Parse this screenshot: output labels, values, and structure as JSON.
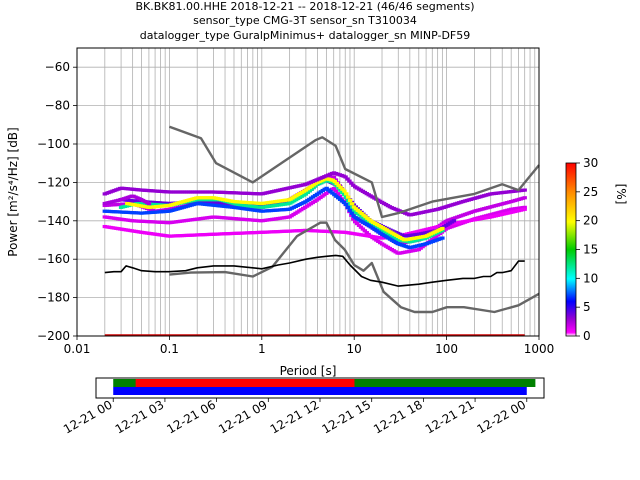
{
  "title_lines": [
    "BK.BK81.00.HHE   2018-12-21 -- 2018-12-21  (46/46 segments)",
    "sensor_type CMG-3T sensor_sn T310034",
    "datalogger_type GuralpMinimus+ datalogger_sn MINP-DF59"
  ],
  "colors": {
    "noise_models": "#666666",
    "mode_line": "#000000",
    "timeline_green": "#008000",
    "timeline_red": "#ff0000",
    "timeline_blue": "#0000ff",
    "grid": "#b0b0b0"
  },
  "chart_data": [
    {
      "type": "heatmap",
      "xlabel": "Period [s]",
      "ylabel": "Power [m²/s⁴/Hz] [dB]",
      "xscale": "log",
      "xlim": [
        0.01,
        1000
      ],
      "ylim": [
        -200,
        -50
      ],
      "x_ticks": [
        {
          "value": 0.01,
          "label": "0.01"
        },
        {
          "value": 0.1,
          "label": "0.1"
        },
        {
          "value": 1,
          "label": "1"
        },
        {
          "value": 10,
          "label": "10"
        },
        {
          "value": 100,
          "label": "100"
        },
        {
          "value": 1000,
          "label": "1000"
        }
      ],
      "y_ticks": [
        {
          "value": -60,
          "label": "−60"
        },
        {
          "value": -80,
          "label": "−80"
        },
        {
          "value": -100,
          "label": "−100"
        },
        {
          "value": -120,
          "label": "−120"
        },
        {
          "value": -140,
          "label": "−140"
        },
        {
          "value": -160,
          "label": "−160"
        },
        {
          "value": -180,
          "label": "−180"
        },
        {
          "value": -200,
          "label": "−200"
        }
      ],
      "grid": "on",
      "colorbar": {
        "label": "[%]",
        "range": [
          0,
          30
        ],
        "ticks": [
          "0",
          "5",
          "10",
          "15",
          "20",
          "25",
          "30"
        ]
      },
      "series": [
        {
          "role": "noise_model_high",
          "points": [
            [
              0.1,
              -91
            ],
            [
              0.22,
              -97
            ],
            [
              0.32,
              -110
            ],
            [
              0.8,
              -120
            ],
            [
              3.8,
              -98
            ],
            [
              4.5,
              -96.5
            ],
            [
              6.3,
              -101
            ],
            [
              8,
              -113
            ],
            [
              15.5,
              -120
            ],
            [
              20,
              -138
            ],
            [
              30,
              -136
            ],
            [
              70,
              -130
            ],
            [
              200,
              -126
            ],
            [
              400,
              -121
            ],
            [
              600,
              -124
            ],
            [
              1000,
              -111
            ]
          ]
        },
        {
          "role": "noise_model_low",
          "points": [
            [
              0.1,
              -168
            ],
            [
              0.17,
              -167
            ],
            [
              0.4,
              -166.7
            ],
            [
              0.8,
              -169
            ],
            [
              1.3,
              -164
            ],
            [
              2.4,
              -148
            ],
            [
              4.3,
              -141
            ],
            [
              5,
              -141
            ],
            [
              6.2,
              -150
            ],
            [
              7.9,
              -155
            ],
            [
              10,
              -163
            ],
            [
              12.6,
              -166
            ],
            [
              15.5,
              -162
            ],
            [
              20.8,
              -177
            ],
            [
              32,
              -185
            ],
            [
              45,
              -187.5
            ],
            [
              70,
              -187.5
            ],
            [
              101,
              -185
            ],
            [
              154,
              -185
            ],
            [
              329,
              -187.5
            ],
            [
              600,
              -184
            ],
            [
              1000,
              -178
            ]
          ]
        },
        {
          "role": "mode",
          "points": [
            [
              0.02,
              -167
            ],
            [
              0.025,
              -166.5
            ],
            [
              0.03,
              -166.5
            ],
            [
              0.034,
              -163.5
            ],
            [
              0.04,
              -164.5
            ],
            [
              0.05,
              -166
            ],
            [
              0.07,
              -166.5
            ],
            [
              0.1,
              -166.5
            ],
            [
              0.15,
              -166
            ],
            [
              0.2,
              -164.5
            ],
            [
              0.3,
              -163.5
            ],
            [
              0.5,
              -163.5
            ],
            [
              1,
              -165
            ],
            [
              1.5,
              -163
            ],
            [
              2,
              -162
            ],
            [
              3,
              -160
            ],
            [
              4,
              -159
            ],
            [
              5,
              -158.5
            ],
            [
              6.3,
              -158
            ],
            [
              7.5,
              -158.5
            ],
            [
              9,
              -163
            ],
            [
              12,
              -169
            ],
            [
              15,
              -171
            ],
            [
              20,
              -172
            ],
            [
              30,
              -174
            ],
            [
              50,
              -173
            ],
            [
              70,
              -172
            ],
            [
              100,
              -171
            ],
            [
              150,
              -170
            ],
            [
              200,
              -170
            ],
            [
              250,
              -169
            ],
            [
              300,
              -169
            ],
            [
              350,
              -167
            ],
            [
              400,
              -167
            ],
            [
              500,
              -166
            ],
            [
              600,
              -161
            ],
            [
              700,
              -161
            ]
          ]
        }
      ],
      "psd_histogram": [
        {
          "pct": 2,
          "points": [
            [
              0.02,
              -132
            ],
            [
              0.04,
              -131
            ],
            [
              0.07,
              -135
            ],
            [
              0.1,
              -134
            ],
            [
              0.2,
              -131
            ],
            [
              0.5,
              -132
            ],
            [
              0.8,
              -134
            ],
            [
              1.3,
              -132
            ],
            [
              2,
              -129
            ],
            [
              3,
              -124
            ],
            [
              5,
              -118
            ],
            [
              6,
              -117
            ],
            [
              8,
              -126
            ],
            [
              10,
              -138
            ],
            [
              15,
              -143
            ],
            [
              20,
              -147
            ],
            [
              30,
              -152
            ],
            [
              50,
              -150
            ],
            [
              100,
              -140
            ],
            [
              200,
              -135
            ],
            [
              500,
              -130
            ],
            [
              700,
              -128
            ]
          ]
        },
        {
          "pct": 1.5,
          "points": [
            [
              0.02,
              -138
            ],
            [
              0.04,
              -140
            ],
            [
              0.1,
              -141
            ],
            [
              0.3,
              -138
            ],
            [
              1,
              -140
            ],
            [
              2,
              -138
            ],
            [
              4,
              -129
            ],
            [
              6,
              -123
            ],
            [
              8,
              -131
            ],
            [
              10,
              -140
            ],
            [
              15,
              -148
            ],
            [
              20,
              -152
            ],
            [
              30,
              -157
            ],
            [
              50,
              -155
            ],
            [
              100,
              -144
            ],
            [
              200,
              -139
            ],
            [
              500,
              -134
            ],
            [
              700,
              -133
            ]
          ]
        },
        {
          "pct": 1,
          "points": [
            [
              0.02,
              -143
            ],
            [
              0.05,
              -146
            ],
            [
              0.1,
              -148
            ],
            [
              0.3,
              -147
            ],
            [
              1,
              -146
            ],
            [
              3,
              -145
            ],
            [
              8,
              -146
            ],
            [
              20,
              -149
            ],
            [
              30,
              -148
            ],
            [
              100,
              -142
            ],
            [
              300,
              -138
            ],
            [
              700,
              -134
            ]
          ]
        },
        {
          "pct": 4,
          "points": [
            [
              0.03,
              -129
            ],
            [
              0.05,
              -130
            ],
            [
              0.1,
              -131
            ],
            [
              0.2,
              -130
            ],
            [
              0.5,
              -131
            ],
            [
              1,
              -132
            ],
            [
              2,
              -130
            ],
            [
              3,
              -126
            ],
            [
              4,
              -121
            ],
            [
              5,
              -119
            ],
            [
              7,
              -122
            ],
            [
              10,
              -132
            ],
            [
              15,
              -140
            ],
            [
              25,
              -145
            ],
            [
              35,
              -148
            ],
            [
              50,
              -147
            ],
            [
              80,
              -145
            ],
            [
              120,
              -140
            ]
          ]
        },
        {
          "pct": 12,
          "points": [
            [
              0.03,
              -133
            ],
            [
              0.045,
              -131
            ],
            [
              0.1,
              -132
            ],
            [
              0.2,
              -129
            ],
            [
              0.35,
              -129
            ],
            [
              0.6,
              -132
            ],
            [
              1,
              -133
            ],
            [
              2,
              -131
            ],
            [
              3,
              -126
            ],
            [
              4,
              -121
            ],
            [
              5,
              -119
            ],
            [
              6,
              -120
            ],
            [
              8,
              -127
            ],
            [
              10,
              -135
            ],
            [
              15,
              -141
            ],
            [
              20,
              -145
            ],
            [
              30,
              -150
            ],
            [
              40,
              -151
            ],
            [
              60,
              -149
            ],
            [
              90,
              -145
            ]
          ]
        },
        {
          "pct": 20,
          "points": [
            [
              0.035,
              -131
            ],
            [
              0.06,
              -133
            ],
            [
              0.1,
              -132
            ],
            [
              0.2,
              -128
            ],
            [
              0.3,
              -128
            ],
            [
              0.5,
              -130
            ],
            [
              1,
              -131
            ],
            [
              2,
              -129
            ],
            [
              3,
              -124
            ],
            [
              4,
              -120
            ],
            [
              5,
              -118
            ],
            [
              6,
              -119
            ],
            [
              8,
              -125
            ],
            [
              10,
              -133
            ],
            [
              15,
              -140
            ],
            [
              25,
              -146
            ],
            [
              35,
              -150
            ],
            [
              60,
              -148
            ],
            [
              90,
              -144
            ]
          ]
        },
        {
          "pct": 7,
          "points": [
            [
              0.02,
              -135
            ],
            [
              0.05,
              -136
            ],
            [
              0.1,
              -135
            ],
            [
              0.2,
              -131
            ],
            [
              0.5,
              -133
            ],
            [
              1,
              -135
            ],
            [
              2,
              -134
            ],
            [
              3,
              -130
            ],
            [
              5,
              -123
            ],
            [
              8,
              -131
            ],
            [
              10,
              -138
            ],
            [
              15,
              -143
            ],
            [
              20,
              -147
            ],
            [
              30,
              -152
            ],
            [
              40,
              -154
            ],
            [
              60,
              -152
            ],
            [
              90,
              -149
            ]
          ]
        },
        {
          "pct": 2.5,
          "points": [
            [
              0.02,
              -131
            ],
            [
              0.03,
              -129
            ],
            [
              0.04,
              -127
            ],
            [
              0.05,
              -129
            ],
            [
              0.06,
              -131
            ]
          ]
        },
        {
          "pct": 3,
          "points": [
            [
              0.02,
              -126
            ],
            [
              0.03,
              -123
            ],
            [
              0.05,
              -124
            ],
            [
              0.1,
              -125
            ],
            [
              0.3,
              -125
            ],
            [
              1,
              -126
            ],
            [
              3,
              -121
            ],
            [
              6,
              -115
            ],
            [
              8,
              -117
            ],
            [
              10,
              -122
            ],
            [
              15,
              -127
            ],
            [
              25,
              -133
            ],
            [
              40,
              -137
            ],
            [
              80,
              -134
            ],
            [
              150,
              -130
            ],
            [
              300,
              -126
            ],
            [
              700,
              -124
            ]
          ]
        }
      ]
    },
    {
      "type": "timeline",
      "x_ticks": [
        "12-21 00",
        "12-21 03",
        "12-21 06",
        "12-21 09",
        "12-21 12",
        "12-21 15",
        "12-21 18",
        "12-21 21",
        "12-22 00"
      ],
      "x_range_hours": [
        -1,
        25
      ],
      "bars": [
        {
          "row": "upper",
          "color": "green",
          "start_h": 0,
          "end_h": 24.5
        },
        {
          "row": "upper",
          "color": "red",
          "start_h": 1.3,
          "end_h": 14
        },
        {
          "row": "lower",
          "color": "blue",
          "start_h": 0,
          "end_h": 24
        }
      ]
    }
  ]
}
